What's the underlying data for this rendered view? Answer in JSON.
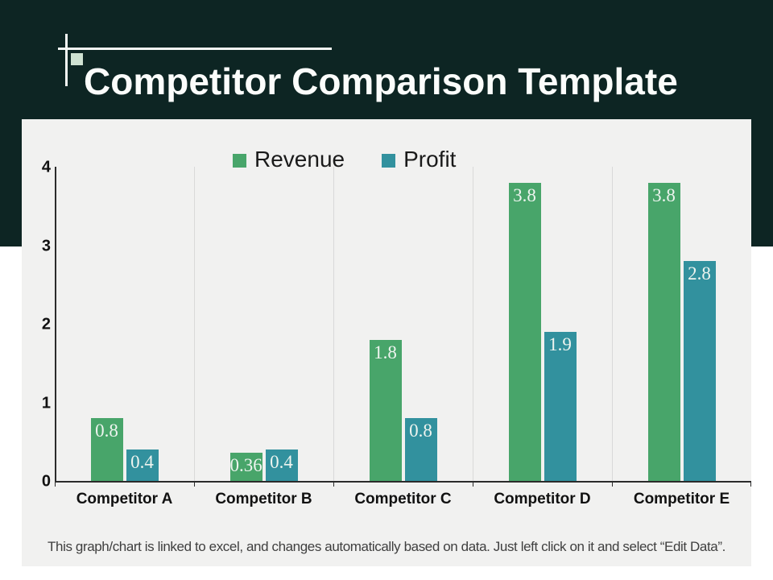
{
  "header": {
    "title": "Competitor Comparison Template"
  },
  "chart_data": {
    "type": "bar",
    "title": "",
    "categories": [
      "Competitor A",
      "Competitor B",
      "Competitor C",
      "Competitor D",
      "Competitor E"
    ],
    "series": [
      {
        "name": "Revenue",
        "color": "#48a56a",
        "values": [
          0.8,
          0.36,
          1.8,
          3.8,
          3.8
        ]
      },
      {
        "name": "Profit",
        "color": "#32919e",
        "values": [
          0.4,
          0.4,
          0.8,
          1.9,
          2.8
        ]
      }
    ],
    "xlabel": "",
    "ylabel": "",
    "ylim": [
      0,
      4
    ],
    "yticks": [
      0,
      1,
      2,
      3,
      4
    ],
    "grid": "vertical category separators only",
    "legend_position": "top-center",
    "data_labels": true,
    "data_label_color": "#eef4ef",
    "plot_background": "#f1f1f0"
  },
  "footer": {
    "note": "This graph/chart is linked to excel, and changes automatically based on data. Just left click on it and select “Edit Data”."
  },
  "colors": {
    "header_background": "#0d2523",
    "title_text": "#fbfdfb",
    "accent_square": "#cfe2d2",
    "revenue_green": "#48a56a",
    "profit_teal": "#32919e",
    "axis": "#2b2b2b",
    "gridline": "#d9d9d9"
  }
}
